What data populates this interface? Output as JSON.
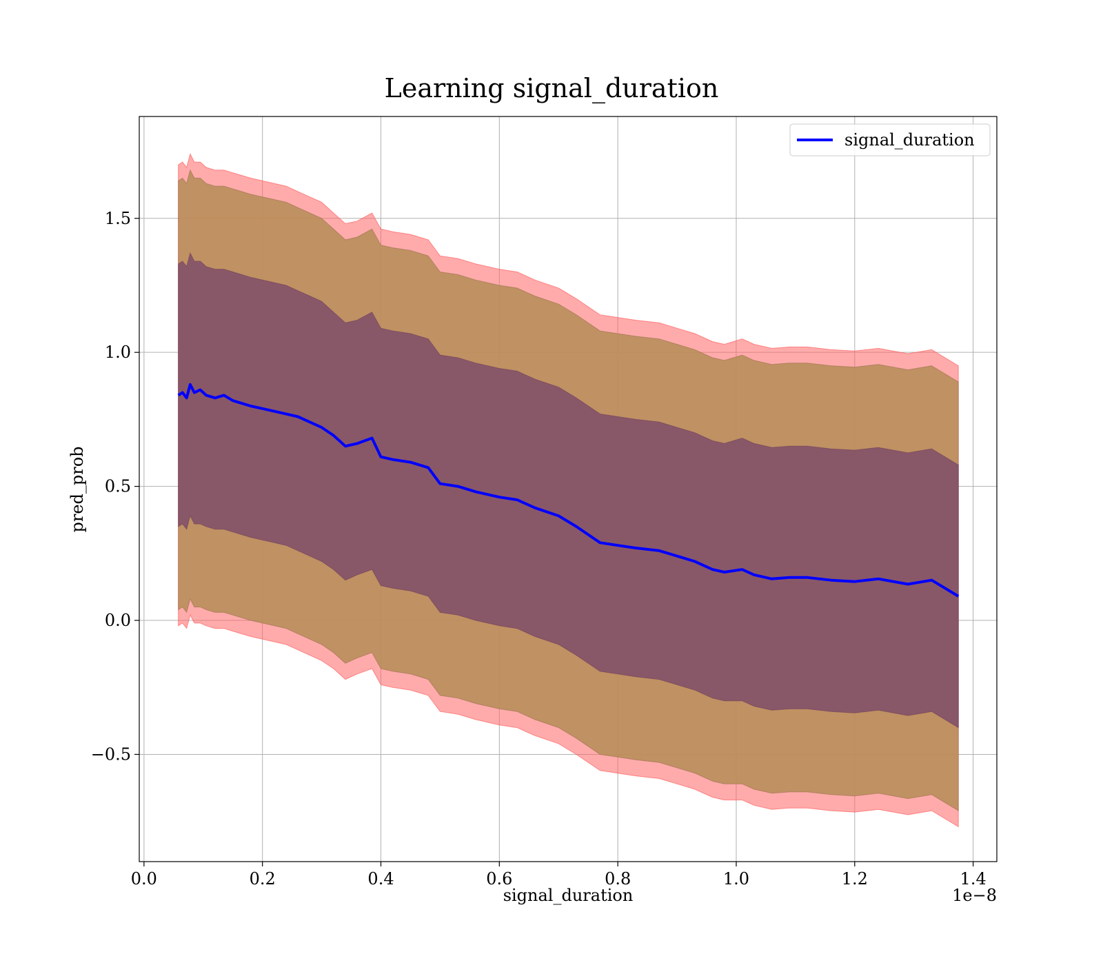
{
  "chart_data": {
    "type": "line",
    "title": "Learning signal_duration",
    "xlabel": "signal_duration",
    "ylabel": "pred_prob",
    "x_offset_label": "1e−8",
    "xlim": [
      -0.008,
      1.44
    ],
    "ylim": [
      -0.9,
      1.88
    ],
    "x_ticks": [
      0.0,
      0.2,
      0.4,
      0.6,
      0.8,
      1.0,
      1.2,
      1.4
    ],
    "x_tick_labels": [
      "0.0",
      "0.2",
      "0.4",
      "0.6",
      "0.8",
      "1.0",
      "1.2",
      "1.4"
    ],
    "y_ticks": [
      -0.5,
      0.0,
      0.5,
      1.0,
      1.5
    ],
    "y_tick_labels": [
      "−0.5",
      "0.0",
      "0.5",
      "1.0",
      "1.5"
    ],
    "grid": true,
    "legend_position": "top-right",
    "colors": {
      "line": "#0000ff",
      "band_outer": "#ff6666",
      "band_mid": "#b98e5a",
      "band_inner": "#7a4a6a",
      "grid": "#b0b0b0"
    },
    "series": [
      {
        "name": "signal_duration",
        "x": [
          0.058,
          0.065,
          0.072,
          0.078,
          0.085,
          0.095,
          0.105,
          0.12,
          0.135,
          0.15,
          0.165,
          0.18,
          0.2,
          0.22,
          0.24,
          0.26,
          0.28,
          0.3,
          0.32,
          0.34,
          0.36,
          0.385,
          0.4,
          0.42,
          0.45,
          0.48,
          0.5,
          0.53,
          0.56,
          0.6,
          0.63,
          0.66,
          0.7,
          0.73,
          0.77,
          0.8,
          0.83,
          0.87,
          0.9,
          0.93,
          0.96,
          0.98,
          1.01,
          1.03,
          1.06,
          1.09,
          1.12,
          1.16,
          1.2,
          1.24,
          1.29,
          1.33,
          1.375
        ],
        "y": [
          0.84,
          0.85,
          0.83,
          0.88,
          0.85,
          0.86,
          0.84,
          0.83,
          0.84,
          0.82,
          0.81,
          0.8,
          0.79,
          0.78,
          0.77,
          0.76,
          0.74,
          0.72,
          0.69,
          0.65,
          0.66,
          0.68,
          0.61,
          0.6,
          0.59,
          0.57,
          0.51,
          0.5,
          0.48,
          0.46,
          0.45,
          0.42,
          0.39,
          0.35,
          0.29,
          0.28,
          0.27,
          0.26,
          0.24,
          0.22,
          0.19,
          0.18,
          0.19,
          0.17,
          0.155,
          0.16,
          0.16,
          0.15,
          0.145,
          0.155,
          0.135,
          0.15,
          0.09
        ],
        "band_inner_upper": [
          1.33,
          1.34,
          1.32,
          1.37,
          1.34,
          1.34,
          1.32,
          1.31,
          1.31,
          1.3,
          1.29,
          1.28,
          1.27,
          1.26,
          1.25,
          1.23,
          1.21,
          1.19,
          1.15,
          1.11,
          1.12,
          1.15,
          1.09,
          1.08,
          1.07,
          1.05,
          0.99,
          0.98,
          0.96,
          0.94,
          0.93,
          0.9,
          0.87,
          0.83,
          0.77,
          0.76,
          0.75,
          0.74,
          0.72,
          0.7,
          0.67,
          0.66,
          0.68,
          0.66,
          0.645,
          0.65,
          0.65,
          0.64,
          0.635,
          0.645,
          0.625,
          0.64,
          0.58
        ],
        "band_inner_lower": [
          0.35,
          0.36,
          0.34,
          0.39,
          0.36,
          0.36,
          0.35,
          0.34,
          0.34,
          0.33,
          0.32,
          0.31,
          0.3,
          0.29,
          0.28,
          0.26,
          0.24,
          0.22,
          0.19,
          0.15,
          0.17,
          0.19,
          0.13,
          0.12,
          0.11,
          0.09,
          0.03,
          0.02,
          0.0,
          -0.02,
          -0.03,
          -0.06,
          -0.09,
          -0.13,
          -0.19,
          -0.2,
          -0.21,
          -0.22,
          -0.24,
          -0.26,
          -0.29,
          -0.3,
          -0.3,
          -0.32,
          -0.335,
          -0.33,
          -0.33,
          -0.34,
          -0.345,
          -0.335,
          -0.355,
          -0.34,
          -0.4
        ],
        "band_mid_upper": [
          1.64,
          1.65,
          1.63,
          1.68,
          1.65,
          1.65,
          1.63,
          1.62,
          1.62,
          1.61,
          1.6,
          1.59,
          1.58,
          1.57,
          1.56,
          1.54,
          1.52,
          1.5,
          1.46,
          1.42,
          1.43,
          1.46,
          1.4,
          1.39,
          1.38,
          1.36,
          1.3,
          1.29,
          1.27,
          1.25,
          1.24,
          1.21,
          1.18,
          1.14,
          1.08,
          1.07,
          1.06,
          1.05,
          1.03,
          1.01,
          0.98,
          0.97,
          0.99,
          0.97,
          0.955,
          0.96,
          0.96,
          0.95,
          0.945,
          0.955,
          0.935,
          0.95,
          0.89
        ],
        "band_mid_lower": [
          0.04,
          0.05,
          0.03,
          0.08,
          0.05,
          0.05,
          0.04,
          0.03,
          0.03,
          0.02,
          0.01,
          0.0,
          -0.01,
          -0.02,
          -0.03,
          -0.05,
          -0.07,
          -0.09,
          -0.12,
          -0.16,
          -0.14,
          -0.12,
          -0.18,
          -0.19,
          -0.2,
          -0.22,
          -0.28,
          -0.29,
          -0.31,
          -0.33,
          -0.34,
          -0.37,
          -0.4,
          -0.44,
          -0.5,
          -0.51,
          -0.52,
          -0.53,
          -0.55,
          -0.57,
          -0.6,
          -0.61,
          -0.61,
          -0.63,
          -0.645,
          -0.64,
          -0.64,
          -0.65,
          -0.655,
          -0.645,
          -0.665,
          -0.65,
          -0.71
        ],
        "band_outer_upper": [
          1.7,
          1.71,
          1.69,
          1.74,
          1.71,
          1.71,
          1.69,
          1.68,
          1.68,
          1.67,
          1.66,
          1.65,
          1.64,
          1.63,
          1.62,
          1.6,
          1.58,
          1.56,
          1.52,
          1.48,
          1.49,
          1.52,
          1.46,
          1.45,
          1.44,
          1.42,
          1.36,
          1.35,
          1.33,
          1.31,
          1.3,
          1.27,
          1.24,
          1.2,
          1.14,
          1.13,
          1.12,
          1.11,
          1.09,
          1.07,
          1.04,
          1.03,
          1.05,
          1.03,
          1.015,
          1.02,
          1.02,
          1.01,
          1.005,
          1.015,
          0.995,
          1.01,
          0.95
        ],
        "band_outer_lower": [
          -0.02,
          -0.01,
          -0.03,
          0.02,
          -0.01,
          -0.01,
          -0.02,
          -0.03,
          -0.03,
          -0.04,
          -0.05,
          -0.06,
          -0.07,
          -0.08,
          -0.09,
          -0.11,
          -0.13,
          -0.15,
          -0.18,
          -0.22,
          -0.2,
          -0.18,
          -0.24,
          -0.25,
          -0.26,
          -0.28,
          -0.34,
          -0.35,
          -0.37,
          -0.39,
          -0.4,
          -0.43,
          -0.46,
          -0.5,
          -0.56,
          -0.57,
          -0.58,
          -0.59,
          -0.61,
          -0.63,
          -0.66,
          -0.67,
          -0.67,
          -0.69,
          -0.705,
          -0.7,
          -0.7,
          -0.71,
          -0.715,
          -0.705,
          -0.725,
          -0.71,
          -0.77
        ]
      }
    ]
  }
}
